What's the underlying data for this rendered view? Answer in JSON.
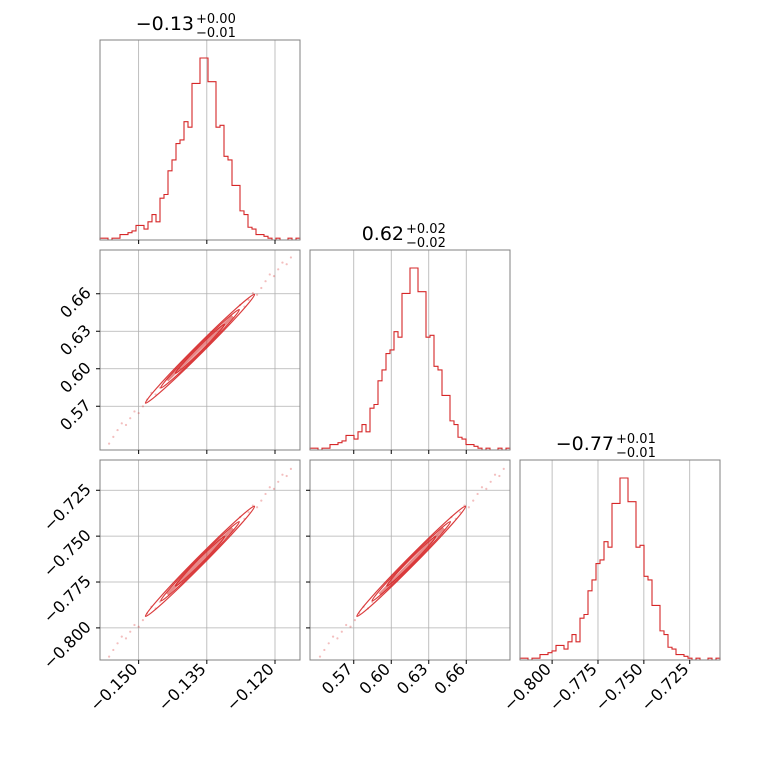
{
  "colors": {
    "series": "#d62728",
    "grid": "#b0b0b0",
    "axis": "#808080",
    "background": "#ffffff"
  },
  "chart_data": {
    "type": "corner",
    "parameters": [
      {
        "range": [
          -0.1585,
          -0.1145
        ],
        "ticks": [
          "-0.150",
          "-0.135",
          "-0.120"
        ],
        "tick_values": [
          -0.15,
          -0.135,
          -0.12
        ]
      },
      {
        "range": [
          0.535,
          0.695
        ],
        "ticks": [
          "0.57",
          "0.60",
          "0.63",
          "0.66"
        ],
        "tick_values": [
          0.57,
          0.6,
          0.63,
          0.66
        ]
      },
      {
        "range": [
          -0.8175,
          -0.7085
        ],
        "ticks": [
          "-0.800",
          "-0.775",
          "-0.750",
          "-0.725"
        ],
        "tick_values": [
          -0.8,
          -0.775,
          -0.75,
          -0.725
        ]
      }
    ],
    "titles": [
      {
        "value": "−0.13",
        "plus": "+0.00",
        "minus": "−0.01"
      },
      {
        "value": "0.62",
        "plus": "+0.02",
        "minus": "−0.02"
      },
      {
        "value": "−0.77",
        "plus": "+0.01",
        "minus": "−0.01"
      }
    ],
    "histograms": [
      {
        "bins": 50,
        "counts": [
          1,
          1,
          0,
          1,
          1,
          3,
          3,
          4,
          5,
          8,
          8,
          6,
          10,
          14,
          10,
          23,
          25,
          38,
          44,
          53,
          55,
          65,
          62,
          86,
          86,
          100,
          100,
          87,
          87,
          62,
          63,
          46,
          44,
          30,
          30,
          16,
          14,
          7,
          6,
          3,
          3,
          2,
          1,
          0,
          1,
          0,
          0,
          1,
          0,
          1
        ]
      },
      {
        "bins": 50,
        "counts": [
          1,
          1,
          0,
          1,
          1,
          3,
          3,
          4,
          5,
          8,
          8,
          6,
          10,
          14,
          10,
          23,
          25,
          38,
          44,
          53,
          55,
          65,
          62,
          86,
          86,
          100,
          100,
          87,
          87,
          62,
          63,
          46,
          44,
          30,
          30,
          16,
          14,
          7,
          6,
          3,
          3,
          2,
          1,
          0,
          1,
          0,
          0,
          1,
          0,
          1
        ]
      },
      {
        "bins": 50,
        "counts": [
          1,
          1,
          0,
          1,
          1,
          3,
          3,
          4,
          5,
          8,
          8,
          6,
          10,
          14,
          10,
          23,
          25,
          38,
          44,
          53,
          55,
          65,
          62,
          86,
          86,
          100,
          100,
          87,
          87,
          62,
          63,
          46,
          44,
          30,
          30,
          16,
          14,
          7,
          6,
          3,
          3,
          2,
          1,
          0,
          1,
          0,
          0,
          1,
          0,
          1
        ]
      }
    ],
    "correlation": {
      "p0": [
        -0.1565,
        -0.1525,
        -0.1485,
        -0.1445,
        -0.1405,
        -0.1365,
        -0.1325,
        -0.1285,
        -0.1245,
        -0.1205,
        -0.1165
      ],
      "p1": [
        0.543,
        0.558,
        0.573,
        0.588,
        0.602,
        0.616,
        0.63,
        0.645,
        0.66,
        0.675,
        0.69
      ],
      "p2": [
        -0.8137,
        -0.8037,
        -0.7937,
        -0.7837,
        -0.7737,
        -0.7637,
        -0.7537,
        -0.7437,
        -0.7337,
        -0.7237,
        -0.7127
      ]
    },
    "contour_levels": [
      0.68,
      0.95,
      0.997
    ],
    "grid": true,
    "legend": "none"
  }
}
